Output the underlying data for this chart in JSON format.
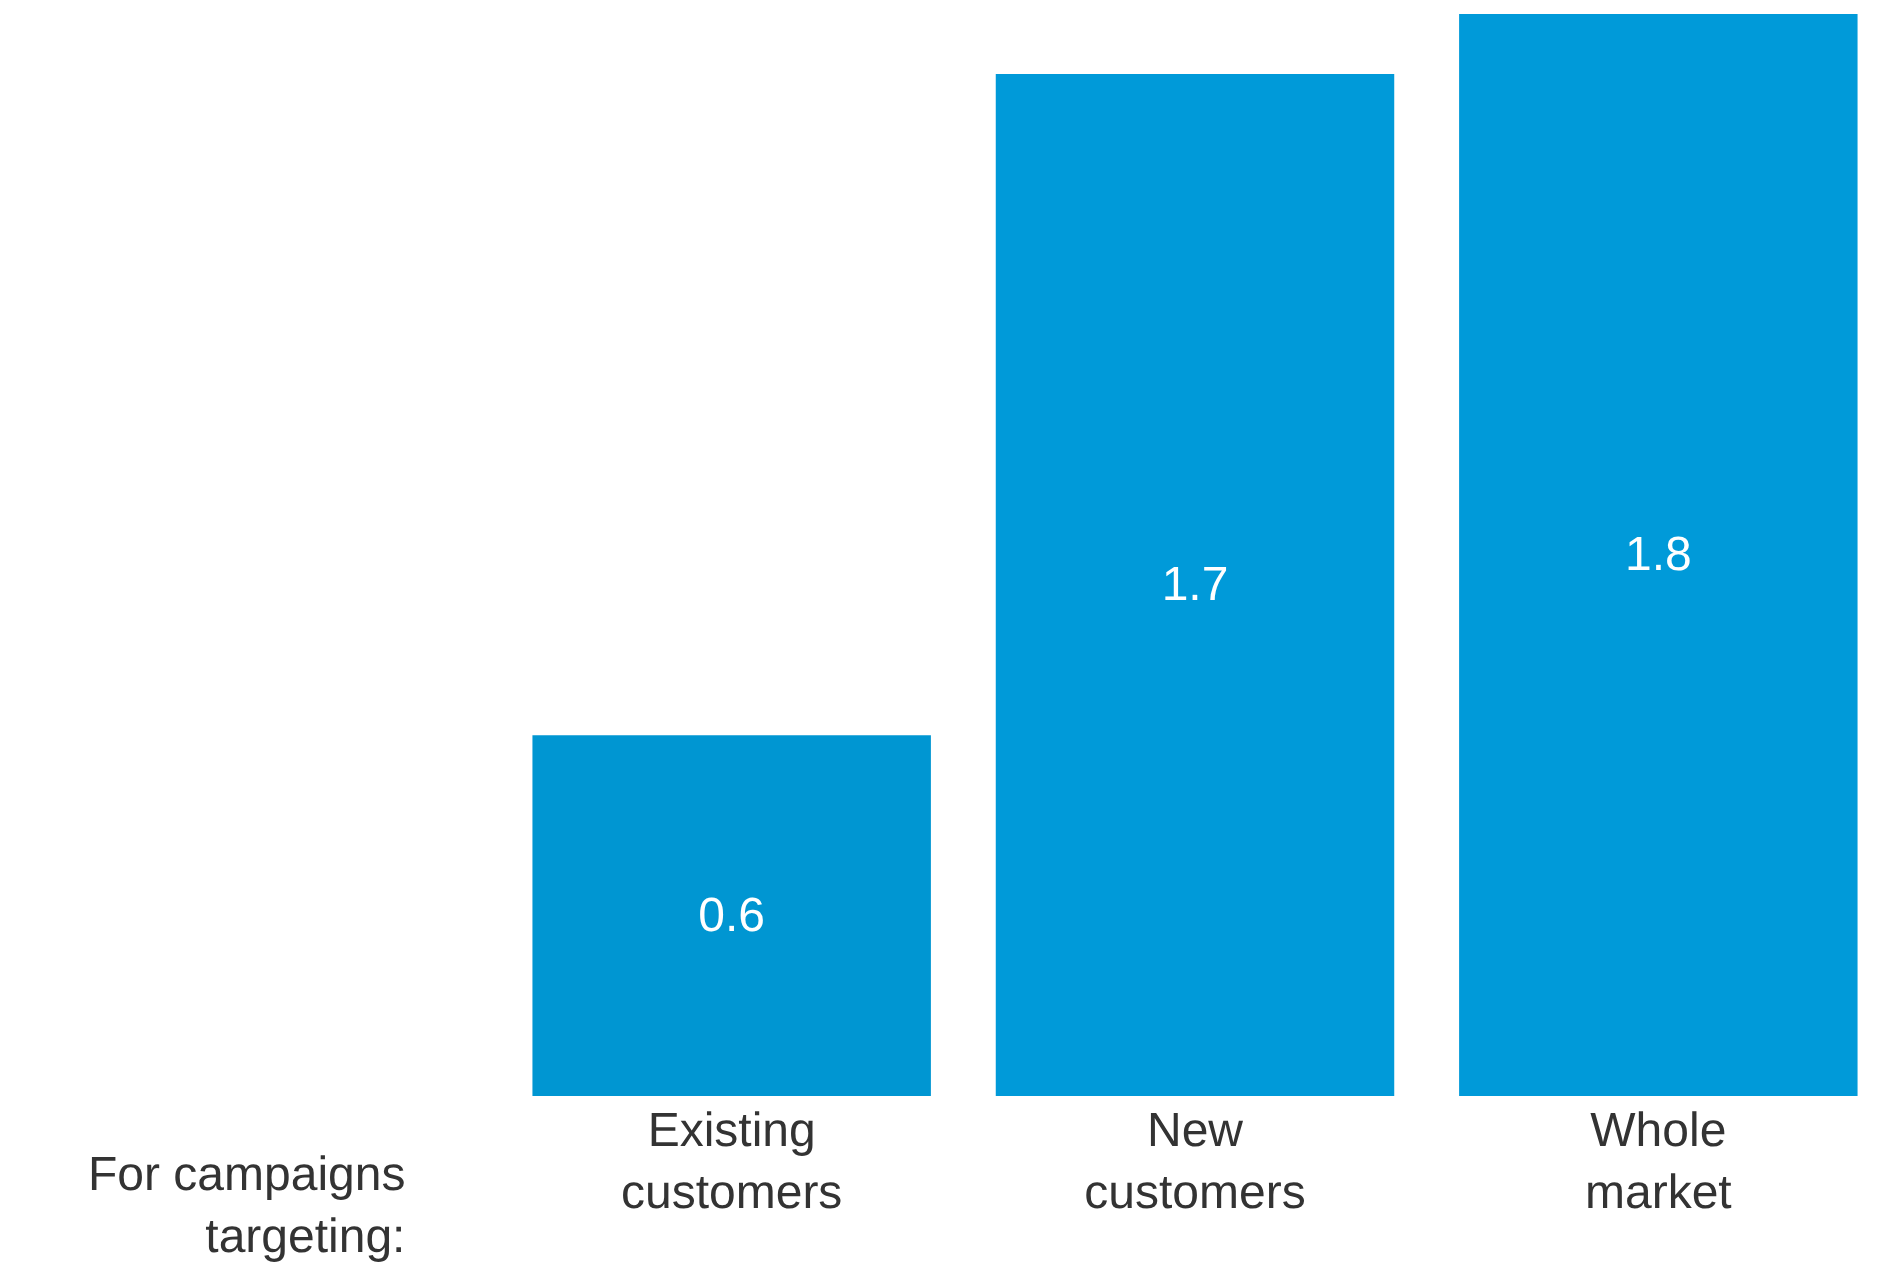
{
  "chart_data": {
    "type": "bar",
    "categories": [
      "Existing customers",
      "New customers",
      "Whole market"
    ],
    "values": [
      0.6,
      1.7,
      1.8
    ],
    "colors": [
      "#0096d2",
      "#009ad9",
      "#009ad9"
    ],
    "xlabel": "For campaigns targeting:",
    "data_labels": true
  }
}
